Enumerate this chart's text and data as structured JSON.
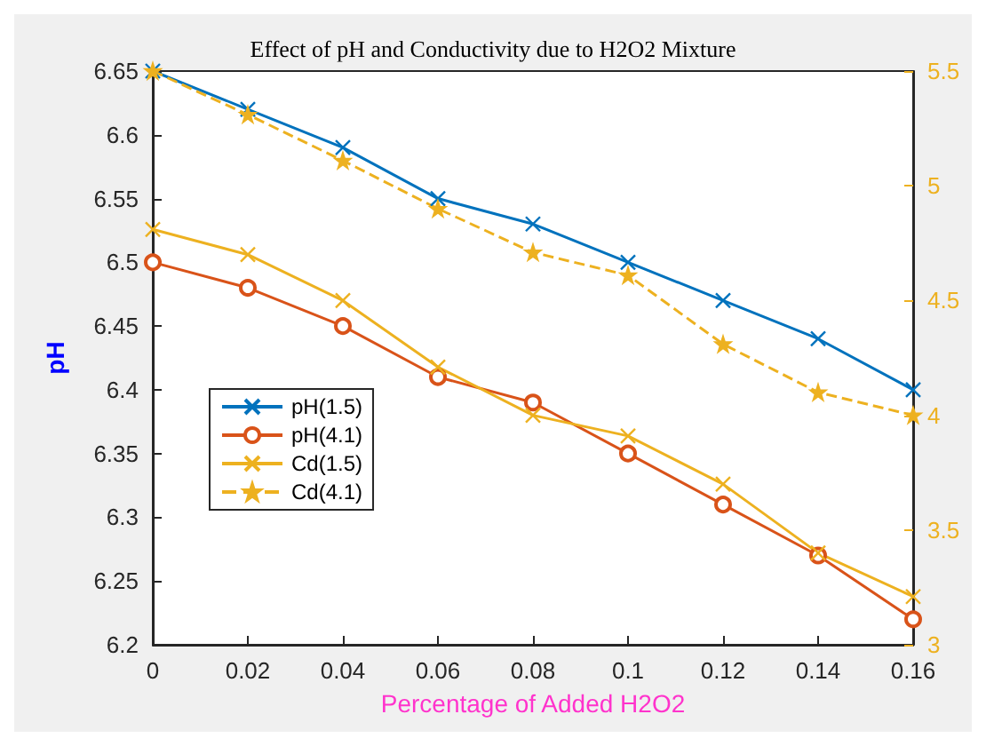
{
  "chart_data": {
    "type": "line",
    "title": "Effect of pH and Conductivity due to H2O2 Mixture",
    "xlabel": "Percentage of Added H2O2",
    "ylabel": "pH",
    "x": [
      0,
      0.02,
      0.04,
      0.06,
      0.08,
      0.1,
      0.12,
      0.14,
      0.16
    ],
    "series": [
      {
        "name": "pH(1.5)",
        "color": "#0072bd",
        "marker": "cross",
        "line_style": "solid",
        "values": [
          6.65,
          6.62,
          6.59,
          6.55,
          6.53,
          6.5,
          6.47,
          6.44,
          6.4
        ]
      },
      {
        "name": "pH(4.1)",
        "color": "#d95319",
        "marker": "circle",
        "line_style": "solid",
        "values": [
          6.5,
          6.48,
          6.45,
          6.41,
          6.39,
          6.35,
          6.31,
          6.27,
          6.22
        ]
      },
      {
        "name": "Cd(1.5)",
        "color": "#edb120",
        "marker": "cross",
        "line_style": "solid",
        "axis": "y2",
        "values": [
          4.81,
          4.7,
          4.5,
          4.21,
          4.0,
          3.91,
          3.7,
          3.4,
          3.21
        ]
      },
      {
        "name": "Cd(4.1)",
        "color": "#edb120",
        "marker": "star",
        "line_style": "dashed",
        "axis": "y2",
        "values": [
          5.5,
          5.31,
          5.11,
          4.9,
          4.71,
          4.61,
          4.31,
          4.1,
          4.0
        ]
      }
    ],
    "xlim": [
      0,
      0.16
    ],
    "xticks": [
      0,
      0.02,
      0.04,
      0.06,
      0.08,
      0.1,
      0.12,
      0.14,
      0.16
    ],
    "ylim": [
      6.2,
      6.65
    ],
    "yticks": [
      6.2,
      6.25,
      6.3,
      6.35,
      6.4,
      6.45,
      6.5,
      6.55,
      6.6,
      6.65
    ],
    "y2lim": [
      3,
      5.5
    ],
    "y2ticks": [
      3,
      3.5,
      4,
      4.5,
      5,
      5.5
    ],
    "grid": false,
    "legend": "bottom left"
  }
}
